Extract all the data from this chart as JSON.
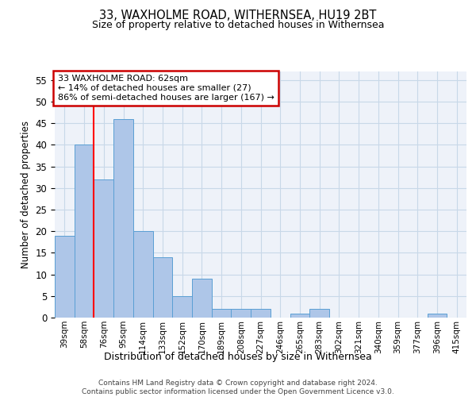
{
  "title1": "33, WAXHOLME ROAD, WITHERNSEA, HU19 2BT",
  "title2": "Size of property relative to detached houses in Withernsea",
  "xlabel": "Distribution of detached houses by size in Withernsea",
  "ylabel": "Number of detached properties",
  "bar_labels": [
    "39sqm",
    "58sqm",
    "76sqm",
    "95sqm",
    "114sqm",
    "133sqm",
    "152sqm",
    "170sqm",
    "189sqm",
    "208sqm",
    "227sqm",
    "246sqm",
    "265sqm",
    "283sqm",
    "302sqm",
    "321sqm",
    "340sqm",
    "359sqm",
    "377sqm",
    "396sqm",
    "415sqm"
  ],
  "bar_values": [
    19,
    40,
    32,
    46,
    20,
    14,
    5,
    9,
    2,
    2,
    2,
    0,
    1,
    2,
    0,
    0,
    0,
    0,
    0,
    1,
    0
  ],
  "bar_color": "#aec6e8",
  "bar_edge_color": "#5a9fd4",
  "grid_color": "#c8d8e8",
  "background_color": "#eef2f9",
  "red_line_x": 1.5,
  "annotation_line1": "33 WAXHOLME ROAD: 62sqm",
  "annotation_line2": "← 14% of detached houses are smaller (27)",
  "annotation_line3": "86% of semi-detached houses are larger (167) →",
  "annotation_box_color": "#ffffff",
  "annotation_box_edge": "#cc0000",
  "footer_text": "Contains HM Land Registry data © Crown copyright and database right 2024.\nContains public sector information licensed under the Open Government Licence v3.0.",
  "ylim": [
    0,
    57
  ],
  "yticks": [
    0,
    5,
    10,
    15,
    20,
    25,
    30,
    35,
    40,
    45,
    50,
    55
  ]
}
